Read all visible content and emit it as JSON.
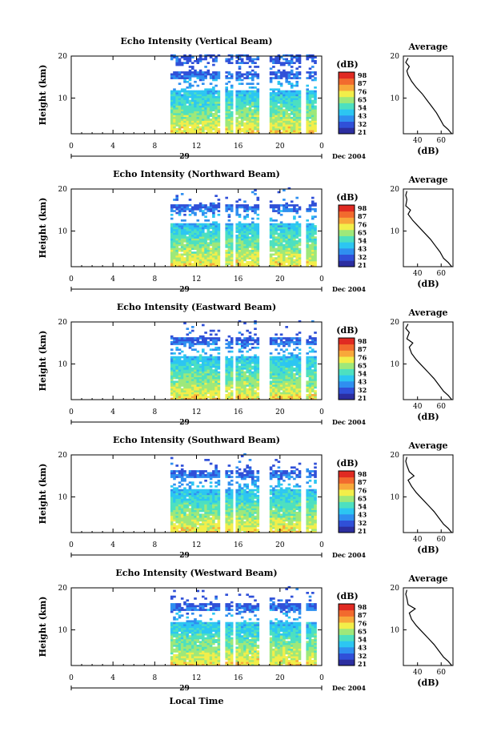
{
  "x_axis_title": "Local Time",
  "colorbar": {
    "unit": "(dB)",
    "ticks": [
      "98",
      "87",
      "76",
      "65",
      "54",
      "43",
      "32",
      "21"
    ],
    "colors": [
      "#2c2ea0",
      "#3050d8",
      "#2f8ff0",
      "#2cc6f2",
      "#4de0c0",
      "#9ee87a",
      "#f2ee4a",
      "#f8a83a",
      "#f26a2e",
      "#e02a22"
    ]
  },
  "panels": [
    {
      "title": "Echo Intensity (Vertical Beam)",
      "ylabel": "Height (km)",
      "y_ticks": [
        "20",
        "10"
      ],
      "x_ticks": [
        "0",
        "4",
        "8",
        "12",
        "16",
        "20",
        "0"
      ],
      "date_label": "Dec 2004",
      "day_label": "29",
      "avg": {
        "title": "Average",
        "xlabel": "(dB)",
        "x_ticks": [
          "40",
          "60"
        ],
        "y_ticks": [
          "20",
          "10"
        ],
        "xlim": [
          28,
          70
        ],
        "profile": [
          [
            69,
            1.5
          ],
          [
            66,
            2.5
          ],
          [
            62,
            3.5
          ],
          [
            59,
            5
          ],
          [
            56,
            6.5
          ],
          [
            52,
            8
          ],
          [
            48,
            9.5
          ],
          [
            44,
            11
          ],
          [
            39,
            12.5
          ],
          [
            35,
            14
          ],
          [
            32,
            15.5
          ],
          [
            31,
            16.5
          ],
          [
            33,
            17.5
          ],
          [
            30,
            18.5
          ],
          [
            32,
            19.5
          ]
        ]
      }
    },
    {
      "title": "Echo Intensity (Northward Beam)",
      "ylabel": "Height (km)",
      "y_ticks": [
        "20",
        "10"
      ],
      "x_ticks": [
        "0",
        "4",
        "8",
        "12",
        "16",
        "20",
        "0"
      ],
      "date_label": "Dec 2004",
      "day_label": "29",
      "avg": {
        "title": "Average",
        "xlabel": "(dB)",
        "x_ticks": [
          "40",
          "60"
        ],
        "y_ticks": [
          "20",
          "10"
        ],
        "xlim": [
          28,
          70
        ],
        "profile": [
          [
            69,
            1.5
          ],
          [
            66,
            2.5
          ],
          [
            62,
            3.5
          ],
          [
            59,
            5
          ],
          [
            55,
            6.5
          ],
          [
            51,
            8
          ],
          [
            46,
            9.5
          ],
          [
            41,
            11
          ],
          [
            36,
            12.5
          ],
          [
            32,
            14
          ],
          [
            34,
            15
          ],
          [
            30,
            16
          ],
          [
            31,
            17.5
          ],
          [
            30,
            18.5
          ],
          [
            31,
            19.5
          ]
        ]
      }
    },
    {
      "title": "Echo Intensity (Eastward Beam)",
      "ylabel": "Height (km)",
      "y_ticks": [
        "20",
        "10"
      ],
      "x_ticks": [
        "0",
        "4",
        "8",
        "12",
        "16",
        "20",
        "0"
      ],
      "date_label": "Dec 2004",
      "day_label": "29",
      "avg": {
        "title": "Average",
        "xlabel": "(dB)",
        "x_ticks": [
          "40",
          "60"
        ],
        "y_ticks": [
          "20",
          "10"
        ],
        "xlim": [
          28,
          70
        ],
        "profile": [
          [
            69,
            1.5
          ],
          [
            66,
            2.5
          ],
          [
            62,
            3.5
          ],
          [
            58,
            5
          ],
          [
            54,
            6.5
          ],
          [
            49,
            8
          ],
          [
            44,
            9.5
          ],
          [
            39,
            11
          ],
          [
            35,
            12.5
          ],
          [
            33,
            14
          ],
          [
            36,
            15
          ],
          [
            31,
            16
          ],
          [
            33,
            17.5
          ],
          [
            30,
            18.5
          ],
          [
            32,
            19.5
          ]
        ]
      }
    },
    {
      "title": "Echo Intensity (Southward Beam)",
      "ylabel": "Height (km)",
      "y_ticks": [
        "20",
        "10"
      ],
      "x_ticks": [
        "0",
        "4",
        "8",
        "12",
        "16",
        "20",
        "0"
      ],
      "date_label": "Dec 2004",
      "day_label": "29",
      "avg": {
        "title": "Average",
        "xlabel": "(dB)",
        "x_ticks": [
          "40",
          "60"
        ],
        "y_ticks": [
          "20",
          "10"
        ],
        "xlim": [
          28,
          70
        ],
        "profile": [
          [
            69,
            1.5
          ],
          [
            66,
            2.5
          ],
          [
            62,
            3.5
          ],
          [
            58,
            5
          ],
          [
            54,
            6.5
          ],
          [
            49,
            8
          ],
          [
            44,
            9.5
          ],
          [
            39,
            11
          ],
          [
            35,
            12.5
          ],
          [
            32,
            14
          ],
          [
            37,
            15
          ],
          [
            33,
            16
          ],
          [
            31,
            17.5
          ],
          [
            30,
            18.5
          ],
          [
            31,
            19.5
          ]
        ]
      }
    },
    {
      "title": "Echo Intensity (Westward Beam)",
      "ylabel": "Height (km)",
      "y_ticks": [
        "20",
        "10"
      ],
      "x_ticks": [
        "0",
        "4",
        "8",
        "12",
        "16",
        "20",
        "0"
      ],
      "date_label": "Dec 2004",
      "day_label": "29",
      "avg": {
        "title": "Average",
        "xlabel": "(dB)",
        "x_ticks": [
          "40",
          "60"
        ],
        "y_ticks": [
          "20",
          "10"
        ],
        "xlim": [
          28,
          70
        ],
        "profile": [
          [
            69,
            1.5
          ],
          [
            66,
            2.5
          ],
          [
            62,
            3.5
          ],
          [
            58,
            5
          ],
          [
            54,
            6.5
          ],
          [
            49,
            8
          ],
          [
            44,
            9.5
          ],
          [
            39,
            11
          ],
          [
            35,
            12.5
          ],
          [
            33,
            14
          ],
          [
            38,
            15
          ],
          [
            32,
            16
          ],
          [
            31,
            17.5
          ],
          [
            30,
            18.5
          ],
          [
            31,
            19.5
          ]
        ]
      }
    }
  ],
  "chart_data": [
    {
      "type": "heatmap",
      "title": "Echo Intensity (Vertical Beam)",
      "xlabel": "Local Time",
      "ylabel": "Height (km)",
      "xlim": [
        0,
        24
      ],
      "ylim": [
        1.5,
        20
      ],
      "color_range_db": [
        21,
        98
      ],
      "data_time_range": [
        9.5,
        23.5
      ],
      "gaps_local_time": [
        [
          14.2,
          14.6
        ],
        [
          15.3,
          15.7
        ],
        [
          18.0,
          19.0
        ],
        [
          21.8,
          22.3
        ]
      ]
    },
    {
      "type": "heatmap",
      "title": "Echo Intensity (Northward Beam)",
      "xlabel": "Local Time",
      "ylabel": "Height (km)",
      "xlim": [
        0,
        24
      ],
      "ylim": [
        1.5,
        20
      ],
      "color_range_db": [
        21,
        98
      ],
      "data_time_range": [
        9.5,
        23.5
      ],
      "gaps_local_time": [
        [
          14.2,
          14.6
        ],
        [
          15.3,
          15.7
        ],
        [
          18.0,
          19.0
        ],
        [
          21.8,
          22.3
        ]
      ]
    },
    {
      "type": "heatmap",
      "title": "Echo Intensity (Eastward Beam)",
      "xlabel": "Local Time",
      "ylabel": "Height (km)",
      "xlim": [
        0,
        24
      ],
      "ylim": [
        1.5,
        20
      ],
      "color_range_db": [
        21,
        98
      ],
      "data_time_range": [
        9.5,
        23.5
      ],
      "gaps_local_time": [
        [
          14.2,
          14.6
        ],
        [
          15.3,
          15.7
        ],
        [
          18.0,
          19.0
        ],
        [
          21.8,
          22.3
        ]
      ]
    },
    {
      "type": "heatmap",
      "title": "Echo Intensity (Southward Beam)",
      "xlabel": "Local Time",
      "ylabel": "Height (km)",
      "xlim": [
        0,
        24
      ],
      "ylim": [
        1.5,
        20
      ],
      "color_range_db": [
        21,
        98
      ],
      "data_time_range": [
        9.5,
        23.5
      ],
      "gaps_local_time": [
        [
          14.2,
          14.6
        ],
        [
          15.3,
          15.7
        ],
        [
          18.0,
          19.0
        ],
        [
          21.8,
          22.3
        ]
      ]
    },
    {
      "type": "heatmap",
      "title": "Echo Intensity (Westward Beam)",
      "xlabel": "Local Time",
      "ylabel": "Height (km)",
      "xlim": [
        0,
        24
      ],
      "ylim": [
        1.5,
        20
      ],
      "color_range_db": [
        21,
        98
      ],
      "data_time_range": [
        9.5,
        23.5
      ],
      "gaps_local_time": [
        [
          14.2,
          14.6
        ],
        [
          15.3,
          15.7
        ],
        [
          18.0,
          19.0
        ],
        [
          21.8,
          22.3
        ]
      ]
    }
  ]
}
